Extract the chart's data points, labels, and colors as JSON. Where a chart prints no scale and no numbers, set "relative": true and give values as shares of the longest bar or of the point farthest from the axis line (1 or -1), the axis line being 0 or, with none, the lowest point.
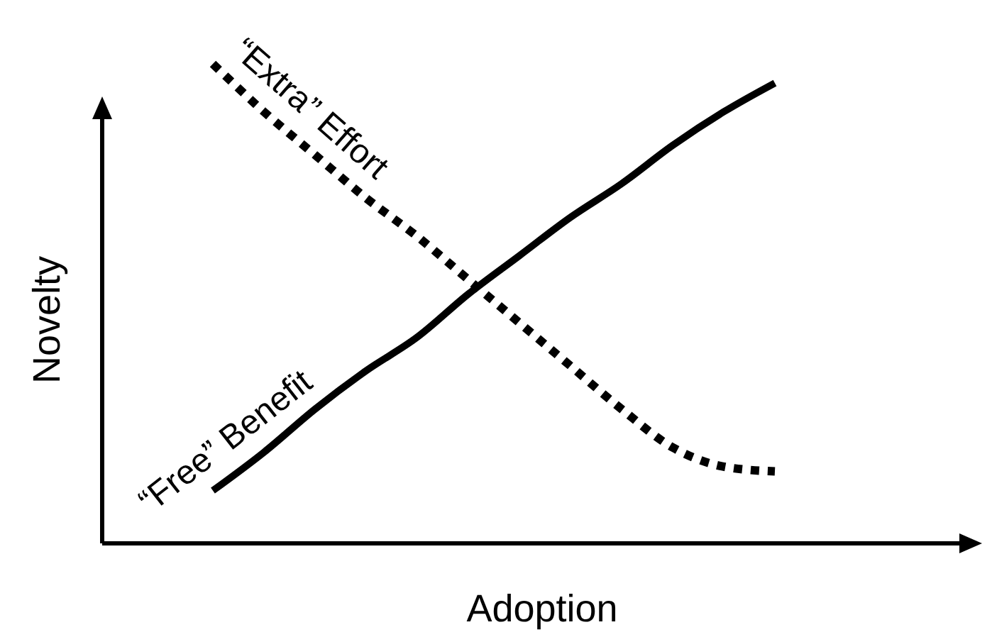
{
  "chart_data": {
    "type": "line",
    "relative": true,
    "xlabel": "Adoption",
    "ylabel": "Novelty",
    "categories": [
      null,
      null,
      null,
      null,
      null,
      null,
      null,
      null,
      null,
      null,
      null,
      null
    ],
    "series": [
      {
        "name": "“Free” Benefit",
        "color": "#000000",
        "line_style": "solid",
        "values": [
          0.11,
          0.19,
          0.28,
          0.36,
          0.43,
          0.52,
          0.6,
          0.68,
          0.75,
          0.83,
          0.9,
          0.96
        ]
      },
      {
        "name": "“Extra” Effort",
        "color": "#000000",
        "line_style": "dotted",
        "values": [
          1,
          0.9,
          0.81,
          0.72,
          0.64,
          0.55,
          0.46,
          0.37,
          0.28,
          0.2,
          0.16,
          0.15
        ]
      }
    ]
  }
}
